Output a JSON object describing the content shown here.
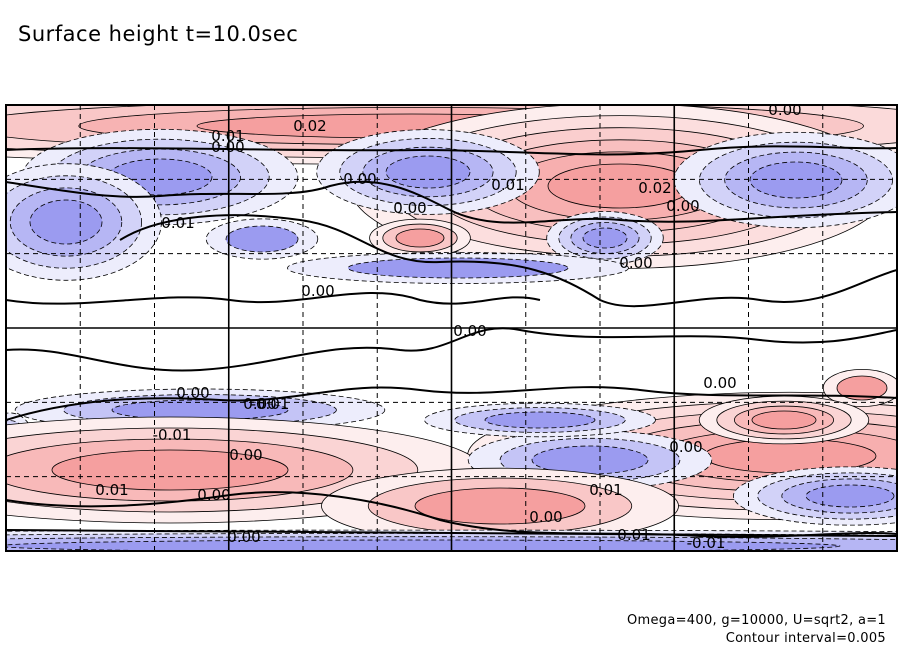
{
  "title": "Surface height t=10.0sec",
  "footer": {
    "params": "Omega=400, g=10000, U=sqrt2, a=1",
    "interval": "Contour interval=0.005"
  },
  "chart_data": {
    "type": "contour",
    "title": "Surface height t=10.0sec",
    "contour_interval": 0.005,
    "grid": true,
    "colors": {
      "positive": "#f07070",
      "negative": "#6a6ae8",
      "zero_line": "#000000"
    },
    "features": [
      {
        "sign": "pos",
        "level": 0.02
      },
      {
        "sign": "pos",
        "level": 0.025
      },
      {
        "sign": "neg",
        "level": -0.015
      },
      {
        "sign": "neg",
        "level": -0.015
      },
      {
        "sign": "neg",
        "level": -0.015
      },
      {
        "sign": "pos",
        "level": 0.025
      },
      {
        "sign": "neg",
        "level": -0.015
      },
      {
        "sign": "neg",
        "level": -0.015
      },
      {
        "sign": "neg",
        "level": -0.005
      },
      {
        "sign": "pos",
        "level": 0.01
      },
      {
        "sign": "pos",
        "level": 0.005
      },
      {
        "sign": "neg",
        "level": -0.01
      },
      {
        "sign": "neg",
        "level": -0.015
      },
      {
        "sign": "pos",
        "level": 0.015
      },
      {
        "sign": "neg",
        "level": -0.01
      },
      {
        "sign": "neg",
        "level": -0.015
      },
      {
        "sign": "pos",
        "level": 0.01
      },
      {
        "sign": "neg",
        "level": -0.015
      },
      {
        "sign": "pos",
        "level": 0.015
      },
      {
        "sign": "neg",
        "level": -0.01
      },
      {
        "sign": "neg",
        "level": -0.005
      }
    ],
    "contour_labels": [
      "0.02",
      "0.01",
      "0.00",
      "0.01",
      "0.00",
      "0.00",
      "0.01",
      "0.02",
      "0.00",
      "0.00",
      "0.00",
      "0.00",
      "0.00",
      "0.00",
      "0.00",
      "-0.01",
      "0.00",
      "0.01",
      "0.00",
      "0.01",
      "0.00",
      "0.00",
      "0.01",
      "0.00",
      "0.00",
      "-0.01",
      "-0.01"
    ]
  }
}
